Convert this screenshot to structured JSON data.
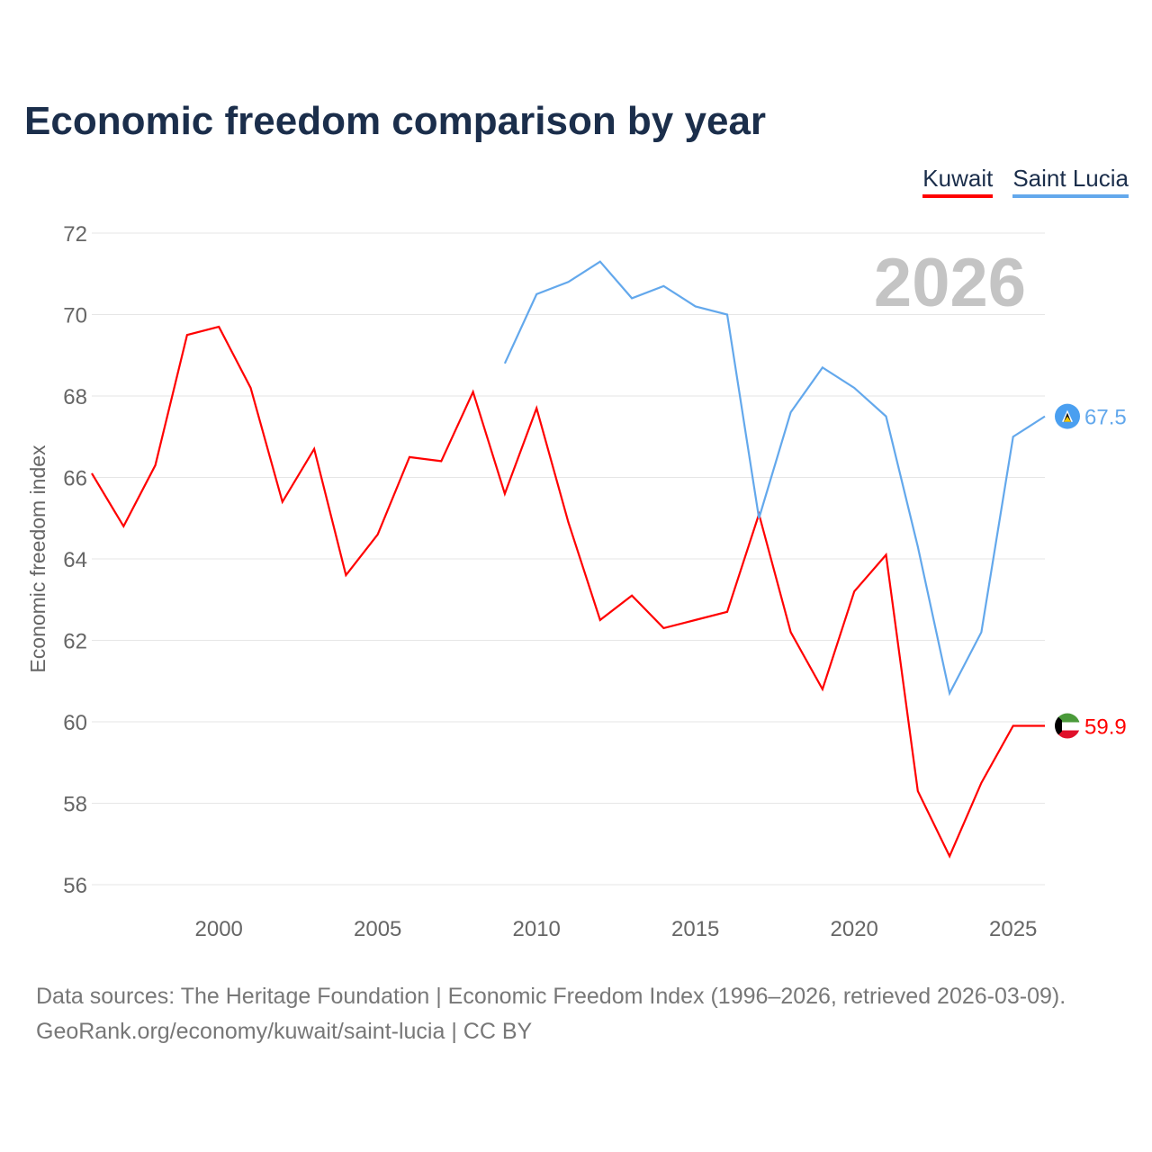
{
  "title": "Economic freedom comparison by year",
  "year_watermark": "2026",
  "source_line1": "Data sources: The Heritage Foundation | Economic Freedom Index (1996–2026, retrieved 2026-03-09).",
  "source_line2": "GeoRank.org/economy/kuwait/saint-lucia | CC BY",
  "chart_data": {
    "type": "line",
    "title": "Economic freedom comparison by year",
    "xlabel": "",
    "ylabel": "Economic freedom index",
    "xlim": [
      1996,
      2026
    ],
    "ylim": [
      56,
      72
    ],
    "yticks": [
      56,
      58,
      60,
      62,
      64,
      66,
      68,
      70,
      72
    ],
    "xticks": [
      2000,
      2005,
      2010,
      2015,
      2020,
      2025
    ],
    "grid": true,
    "legend_position": "top-right",
    "series": [
      {
        "name": "Kuwait",
        "color": "#ff0000",
        "end_label": "59.9",
        "x": [
          1996,
          1997,
          1998,
          1999,
          2000,
          2001,
          2002,
          2003,
          2004,
          2005,
          2006,
          2007,
          2008,
          2009,
          2010,
          2011,
          2012,
          2013,
          2014,
          2015,
          2016,
          2017,
          2018,
          2019,
          2020,
          2021,
          2022,
          2023,
          2024,
          2025,
          2026
        ],
        "values": [
          66.1,
          64.8,
          66.3,
          69.5,
          69.7,
          68.2,
          65.4,
          66.7,
          63.6,
          64.6,
          66.5,
          66.4,
          68.1,
          65.6,
          67.7,
          64.9,
          62.5,
          63.1,
          62.3,
          62.5,
          62.7,
          65.1,
          62.2,
          60.8,
          63.2,
          64.1,
          58.3,
          56.7,
          58.5,
          59.9,
          59.9
        ]
      },
      {
        "name": "Saint Lucia",
        "color": "#63a8ec",
        "end_label": "67.5",
        "x": [
          2009,
          2010,
          2011,
          2012,
          2013,
          2014,
          2015,
          2016,
          2017,
          2018,
          2019,
          2020,
          2021,
          2022,
          2023,
          2024,
          2025,
          2026
        ],
        "values": [
          68.8,
          70.5,
          70.8,
          71.3,
          70.4,
          70.7,
          70.2,
          70.0,
          65.0,
          67.6,
          68.7,
          68.2,
          67.5,
          64.3,
          60.7,
          62.2,
          67.0,
          67.5
        ]
      }
    ]
  }
}
